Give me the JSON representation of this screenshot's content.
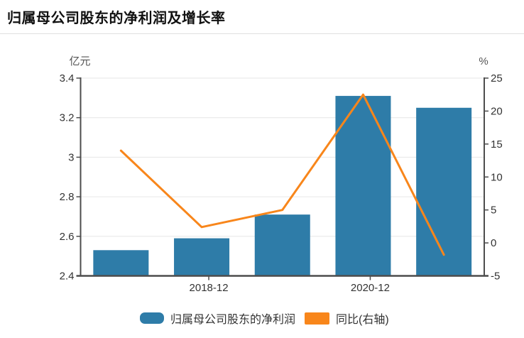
{
  "header": {
    "title": "归属母公司股东的净利润及增长率"
  },
  "colors": {
    "bar": "#2E7CA8",
    "line": "#F8861B",
    "axis": "#4D4D4D",
    "grid": "#E6E6E6",
    "axis_text": "#333333",
    "unit_text": "#555555",
    "title_text": "#111111",
    "divider": "#E0E0E0",
    "background": "#FFFFFF"
  },
  "chart_data": {
    "type": "bar+line",
    "title": "归属母公司股东的净利润及增长率",
    "categories": [
      "",
      "2018-12",
      "",
      "2020-12",
      ""
    ],
    "x_tick_labels": [
      "2018-12",
      "2020-12"
    ],
    "x_label_indices": [
      1,
      3
    ],
    "series": [
      {
        "name": "归属母公司股东的净利润",
        "type": "bar",
        "axis": "left",
        "unit": "亿元",
        "color": "#2E7CA8",
        "values": [
          2.53,
          2.59,
          2.71,
          3.31,
          3.25
        ]
      },
      {
        "name": "同比(右轴)",
        "type": "line",
        "axis": "right",
        "unit": "%",
        "color": "#F8861B",
        "values": [
          14,
          2.4,
          5,
          22.5,
          -1.8
        ]
      }
    ],
    "left_axis": {
      "label": "亿元",
      "min": 2.4,
      "max": 3.4,
      "ticks": [
        3.4,
        3.2,
        3,
        2.8,
        2.6,
        2.4
      ]
    },
    "right_axis": {
      "label": "%",
      "min": -5,
      "max": 25,
      "ticks": [
        25,
        20,
        15,
        10,
        5,
        0,
        -5
      ]
    },
    "grid": true,
    "legend_position": "bottom"
  },
  "legend": {
    "items": [
      {
        "label": "归属母公司股东的净利润",
        "color": "#2E7CA8",
        "shape": "round-rect"
      },
      {
        "label": "同比(右轴)",
        "color": "#F8861B",
        "shape": "rect"
      }
    ]
  }
}
